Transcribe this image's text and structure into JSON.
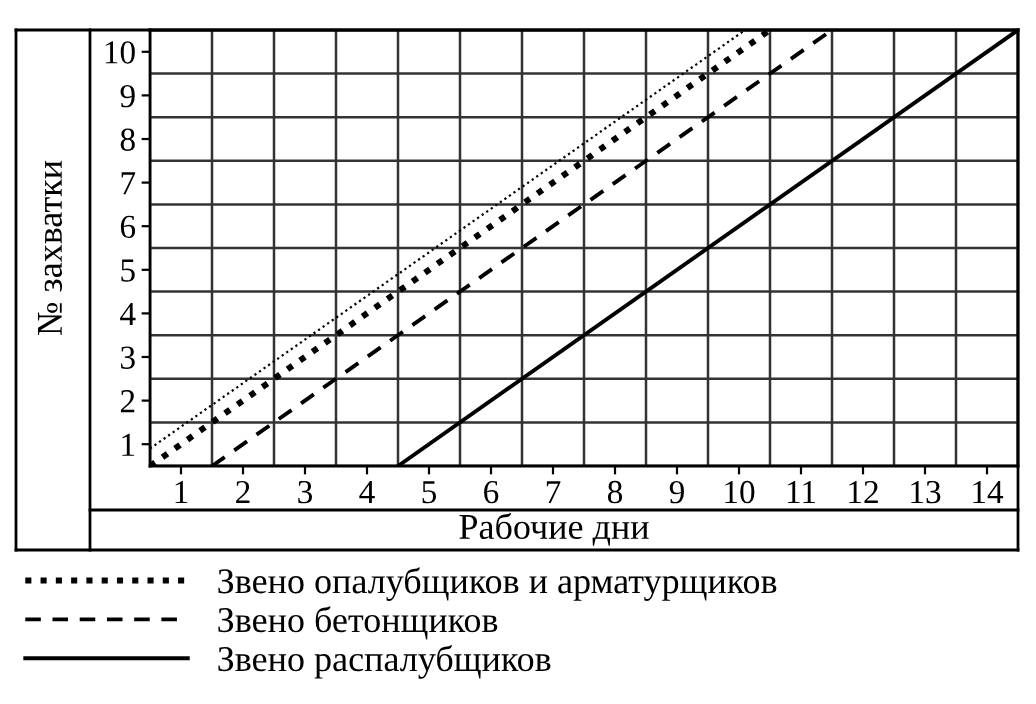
{
  "chart_data": {
    "type": "line",
    "xlabel": "Рабочие дни",
    "ylabel": "№ захватки",
    "xlim": [
      0.5,
      14.5
    ],
    "ylim": [
      0.5,
      10.5
    ],
    "xticks": [
      1,
      2,
      3,
      4,
      5,
      6,
      7,
      8,
      9,
      10,
      11,
      12,
      13,
      14
    ],
    "yticks": [
      1,
      2,
      3,
      4,
      5,
      6,
      7,
      8,
      9,
      10
    ],
    "grid": true,
    "legend": "bottom",
    "marker": "none",
    "series": [
      {
        "name": "Звено опалубщиков и арматурщиков",
        "color": "#000000",
        "line_style": "dotted",
        "x": [
          0.5,
          10.5
        ],
        "values": [
          0.5,
          10.5
        ]
      },
      {
        "name": "Звено бетонщиков",
        "color": "#000000",
        "line_style": "dashed",
        "x": [
          1.5,
          11.5
        ],
        "values": [
          0.5,
          10.5
        ]
      },
      {
        "name": "Звено распалубщиков",
        "color": "#000000",
        "line_style": "solid",
        "x": [
          4.5,
          14.5
        ],
        "values": [
          0.5,
          10.5
        ]
      },
      {
        "color": "#000000",
        "line_style": "dotted",
        "x": [
          0.5,
          10.1
        ],
        "values": [
          0.9,
          10.5
        ]
      }
    ]
  }
}
